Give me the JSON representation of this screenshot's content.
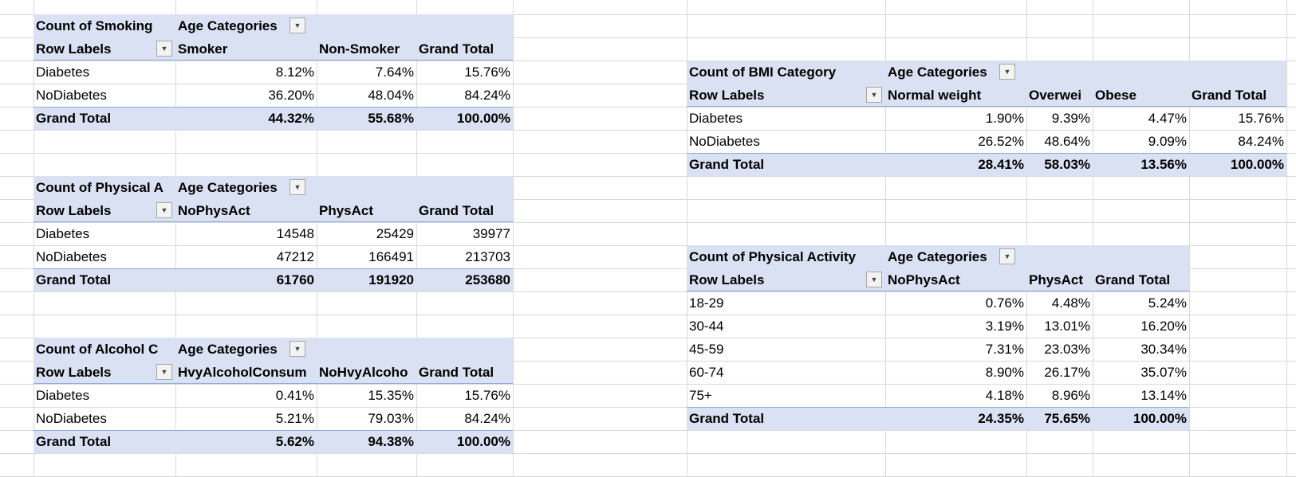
{
  "tables": [
    {
      "title": "Count of Smoking",
      "column_header": "Age Categories",
      "row_labels_header": "Row Labels",
      "columns": [
        "Smoker",
        "Non-Smoker",
        "Grand Total"
      ],
      "rows": [
        {
          "label": "Diabetes",
          "values": [
            "8.12%",
            "7.64%",
            "15.76%"
          ]
        },
        {
          "label": "NoDiabetes",
          "values": [
            "36.20%",
            "48.04%",
            "84.24%"
          ]
        }
      ],
      "grand_total": {
        "label": "Grand Total",
        "values": [
          "44.32%",
          "55.68%",
          "100.00%"
        ]
      }
    },
    {
      "title": "Count of Physical A",
      "column_header": "Age Categories",
      "row_labels_header": "Row Labels",
      "columns": [
        "NoPhysAct",
        "PhysAct",
        "Grand Total"
      ],
      "rows": [
        {
          "label": "Diabetes",
          "values": [
            "14548",
            "25429",
            "39977"
          ]
        },
        {
          "label": "NoDiabetes",
          "values": [
            "47212",
            "166491",
            "213703"
          ]
        }
      ],
      "grand_total": {
        "label": "Grand Total",
        "values": [
          "61760",
          "191920",
          "253680"
        ]
      }
    },
    {
      "title": "Count of Alcohol C",
      "column_header": "Age Categories",
      "row_labels_header": "Row Labels",
      "columns": [
        "HvyAlcoholConsum",
        "NoHvyAlcoho",
        "Grand Total"
      ],
      "rows": [
        {
          "label": "Diabetes",
          "values": [
            "0.41%",
            "15.35%",
            "15.76%"
          ]
        },
        {
          "label": "NoDiabetes",
          "values": [
            "5.21%",
            "79.03%",
            "84.24%"
          ]
        }
      ],
      "grand_total": {
        "label": "Grand Total",
        "values": [
          "5.62%",
          "94.38%",
          "100.00%"
        ]
      }
    },
    {
      "title": "Count of BMI Category",
      "column_header": "Age Categories",
      "row_labels_header": "Row Labels",
      "columns": [
        "Normal weight",
        "Overwei",
        "Obese",
        "Grand Total"
      ],
      "rows": [
        {
          "label": "Diabetes",
          "values": [
            "1.90%",
            "9.39%",
            "4.47%",
            "15.76%"
          ]
        },
        {
          "label": "NoDiabetes",
          "values": [
            "26.52%",
            "48.64%",
            "9.09%",
            "84.24%"
          ]
        }
      ],
      "grand_total": {
        "label": "Grand Total",
        "values": [
          "28.41%",
          "58.03%",
          "13.56%",
          "100.00%"
        ]
      }
    },
    {
      "title": "Count of Physical Activity",
      "column_header": "Age Categories",
      "row_labels_header": "Row Labels",
      "columns": [
        "NoPhysAct",
        "PhysAct",
        "Grand Total"
      ],
      "rows": [
        {
          "label": "18-29",
          "values": [
            "0.76%",
            "4.48%",
            "5.24%"
          ]
        },
        {
          "label": "30-44",
          "values": [
            "3.19%",
            "13.01%",
            "16.20%"
          ]
        },
        {
          "label": "45-59",
          "values": [
            "7.31%",
            "23.03%",
            "30.34%"
          ]
        },
        {
          "label": "60-74",
          "values": [
            "8.90%",
            "26.17%",
            "35.07%"
          ]
        },
        {
          "label": "75+",
          "values": [
            "4.18%",
            "8.96%",
            "13.14%"
          ]
        }
      ],
      "grand_total": {
        "label": "Grand Total",
        "values": [
          "24.35%",
          "75.65%",
          "100.00%"
        ]
      }
    }
  ]
}
